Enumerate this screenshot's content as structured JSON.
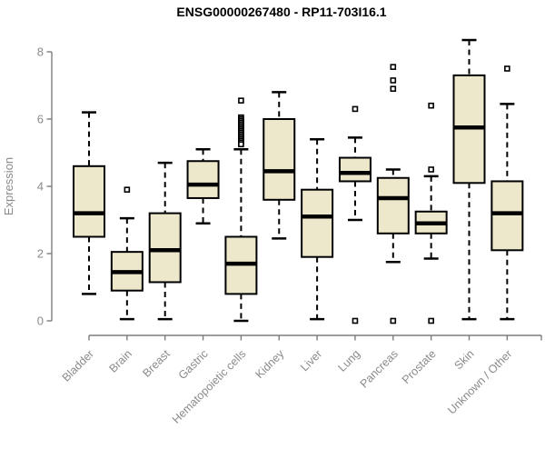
{
  "title": "ENSG00000267480 - RP11-703I16.1",
  "chart_data": {
    "type": "boxplot",
    "title": "ENSG00000267480 - RP11-703I16.1",
    "xlabel": "",
    "ylabel": "Expression",
    "ylim": [
      0,
      8
    ],
    "yticks": [
      "0",
      "2",
      "4",
      "6",
      "8"
    ],
    "grid": false,
    "legend": "none",
    "categories": [
      "Bladder",
      "Brain",
      "Breast",
      "Gastric",
      "Hematopoietic cells",
      "Kidney",
      "Liver",
      "Lung",
      "Pancreas",
      "Prostate",
      "Skin",
      "Unknown / Other"
    ],
    "series": [
      {
        "category": "Bladder",
        "whisker_low": 0.8,
        "q1": 2.5,
        "median": 3.2,
        "q3": 4.6,
        "whisker_high": 6.2,
        "outliers": []
      },
      {
        "category": "Brain",
        "whisker_low": 0.05,
        "q1": 0.9,
        "median": 1.45,
        "q3": 2.05,
        "whisker_high": 3.05,
        "outliers": [
          3.9
        ]
      },
      {
        "category": "Breast",
        "whisker_low": 0.05,
        "q1": 1.15,
        "median": 2.1,
        "q3": 3.2,
        "whisker_high": 4.7,
        "outliers": []
      },
      {
        "category": "Gastric",
        "whisker_low": 2.9,
        "q1": 3.65,
        "median": 4.05,
        "q3": 4.75,
        "whisker_high": 5.1,
        "outliers": []
      },
      {
        "category": "Hematopoietic cells",
        "whisker_low": 0.0,
        "q1": 0.8,
        "median": 1.7,
        "q3": 2.5,
        "whisker_high": 5.1,
        "outliers": [
          6.55,
          6.05,
          6.0,
          5.95,
          5.9,
          5.85,
          5.8,
          5.75,
          5.7,
          5.65,
          5.6,
          5.55,
          5.5,
          5.45,
          5.4,
          5.35,
          5.3,
          5.25
        ]
      },
      {
        "category": "Kidney",
        "whisker_low": 2.45,
        "q1": 3.6,
        "median": 4.45,
        "q3": 6.0,
        "whisker_high": 6.8,
        "outliers": []
      },
      {
        "category": "Liver",
        "whisker_low": 0.05,
        "q1": 1.9,
        "median": 3.1,
        "q3": 3.9,
        "whisker_high": 5.4,
        "outliers": []
      },
      {
        "category": "Lung",
        "whisker_low": 3.0,
        "q1": 4.15,
        "median": 4.4,
        "q3": 4.85,
        "whisker_high": 5.45,
        "outliers": [
          6.3,
          0.0
        ]
      },
      {
        "category": "Pancreas",
        "whisker_low": 1.75,
        "q1": 2.6,
        "median": 3.65,
        "q3": 4.25,
        "whisker_high": 4.5,
        "outliers": [
          7.55,
          7.15,
          6.9,
          0.0
        ]
      },
      {
        "category": "Prostate",
        "whisker_low": 1.85,
        "q1": 2.6,
        "median": 2.9,
        "q3": 3.25,
        "whisker_high": 4.3,
        "outliers": [
          6.4,
          4.5,
          0.0
        ]
      },
      {
        "category": "Skin",
        "whisker_low": 0.05,
        "q1": 4.1,
        "median": 5.75,
        "q3": 7.3,
        "whisker_high": 8.35,
        "outliers": []
      },
      {
        "category": "Unknown / Other",
        "whisker_low": 0.05,
        "q1": 2.1,
        "median": 3.2,
        "q3": 4.15,
        "whisker_high": 6.45,
        "outliers": [
          7.5
        ]
      }
    ],
    "colors": {
      "box_fill": "#EDE7CB",
      "box_border": "#000000",
      "median": "#000000",
      "whisker": "#000000",
      "axis": "#7d7d7d",
      "tick_label": "#8a8a8a",
      "title": "#000000",
      "background": "#ffffff"
    }
  }
}
